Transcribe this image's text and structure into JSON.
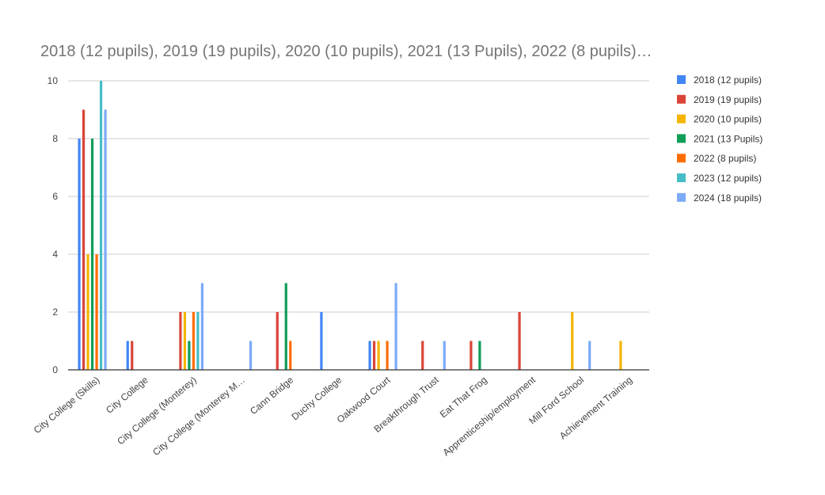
{
  "chart_data": {
    "type": "bar",
    "title": "2018 (12 pupils), 2019 (19 pupils), 2020 (10 pupils), 2021 (13 Pupils), 2022 (8 pupils)…",
    "xlabel": "",
    "ylabel": "",
    "ylim": [
      0,
      10
    ],
    "yticks": [
      0,
      2,
      4,
      6,
      8,
      10
    ],
    "grid": true,
    "legend_position": "right",
    "categories": [
      "City College (Skills)",
      "City College",
      "City College (Monterey)",
      "City College (Monterey M…",
      "Cann Bridge",
      "Duchy College",
      "Oakwood Court",
      "Breakthrough Trust",
      "Eat That Frog",
      "Apprenticeship/employment",
      "Mill Ford School",
      "Achievement Training"
    ],
    "series": [
      {
        "name": "2018 (12 pupils)",
        "color": "#4285f4",
        "values": [
          8,
          1,
          0,
          0,
          0,
          2,
          1,
          0,
          0,
          0,
          0,
          0
        ]
      },
      {
        "name": "2019 (19 pupils)",
        "color": "#db4437",
        "values": [
          9,
          1,
          2,
          0,
          2,
          0,
          1,
          1,
          1,
          2,
          0,
          0
        ]
      },
      {
        "name": "2020 (10 pupils)",
        "color": "#f4b400",
        "values": [
          4,
          0,
          2,
          0,
          0,
          0,
          1,
          0,
          0,
          0,
          2,
          1
        ]
      },
      {
        "name": "2021 (13 Pupils)",
        "color": "#0f9d58",
        "values": [
          8,
          0,
          1,
          0,
          3,
          0,
          0,
          0,
          1,
          0,
          0,
          0
        ]
      },
      {
        "name": "2022 (8 pupils)",
        "color": "#ff6d01",
        "values": [
          4,
          0,
          2,
          0,
          1,
          0,
          1,
          0,
          0,
          0,
          0,
          0
        ]
      },
      {
        "name": "2023 (12 pupils)",
        "color": "#46bdc6",
        "values": [
          10,
          0,
          2,
          0,
          0,
          0,
          0,
          0,
          0,
          0,
          0,
          0
        ]
      },
      {
        "name": "2024 (18 pupils)",
        "color": "#7baaf7",
        "values": [
          9,
          0,
          3,
          1,
          0,
          0,
          3,
          1,
          0,
          0,
          1,
          0
        ]
      }
    ]
  }
}
